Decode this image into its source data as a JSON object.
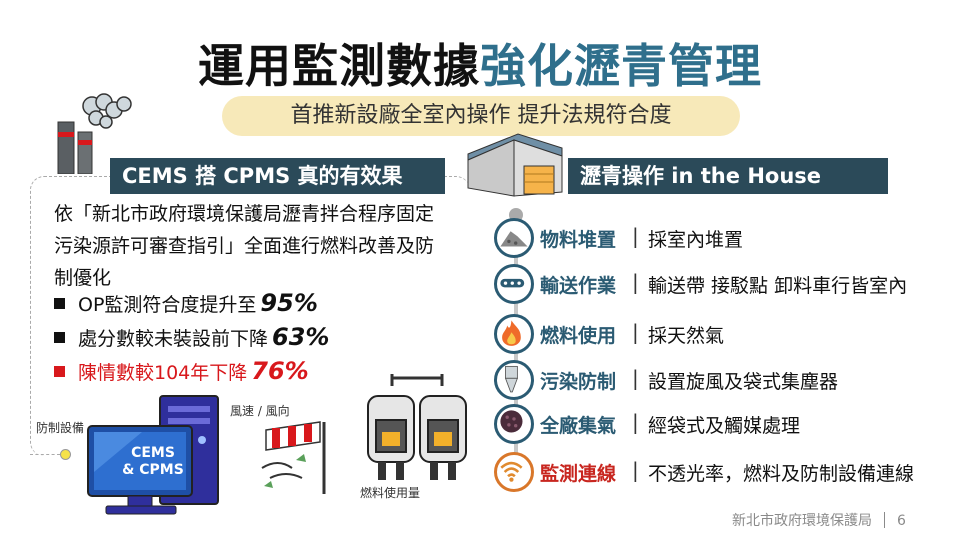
{
  "title": {
    "part1": "運用監測數據",
    "part2": "強化瀝青管理"
  },
  "subtitle": "首推新設廠全室內操作 提升法規符合度",
  "left_section": {
    "banner": "CEMS 搭 CPMS 真的有效果",
    "intro": "依「新北市政府環境保護局瀝青拌合程序固定污染源許可審查指引」全面進行燃料改善及防制優化",
    "bullets": [
      {
        "text": "OP監測符合度提升至",
        "value": "95%"
      },
      {
        "text": "處分數較未裝設前下降",
        "value": "63%"
      },
      {
        "text": "陳情數較104年下降",
        "value": "76%"
      }
    ],
    "labels": {
      "prevention_equipment": "防制設備",
      "wind": "風速 / 風向",
      "fuel_usage": "燃料使用量"
    },
    "computer_label": {
      "line1": "CEMS",
      "line2": "& CPMS"
    }
  },
  "right_section": {
    "banner": "瀝青操作 in the House",
    "items": [
      {
        "label": "物料堆置",
        "desc": "採室內堆置",
        "icon": "material-pile-icon"
      },
      {
        "label": "輸送作業",
        "desc": "輸送帶 接駁點 卸料車行皆室內",
        "icon": "conveyor-icon"
      },
      {
        "label": "燃料使用",
        "desc": "採天然氣",
        "icon": "flame-icon"
      },
      {
        "label": "污染防制",
        "desc": "設置旋風及袋式集塵器",
        "icon": "cyclone-collector-icon"
      },
      {
        "label": "全廠集氣",
        "desc": "經袋式及觸媒處理",
        "icon": "filter-icon"
      },
      {
        "label": "監測連線",
        "desc": "不透光率，燃料及防制設備連線",
        "icon": "wifi-signal-icon"
      }
    ]
  },
  "footer": {
    "org": "新北市政府環境保護局",
    "page": "6"
  },
  "colors": {
    "dark_teal": "#2b4a59",
    "accent_teal": "#2f6f8c",
    "red": "#d8181c",
    "orange": "#d9772a",
    "subtitle_bg": "#f7e9b9"
  }
}
